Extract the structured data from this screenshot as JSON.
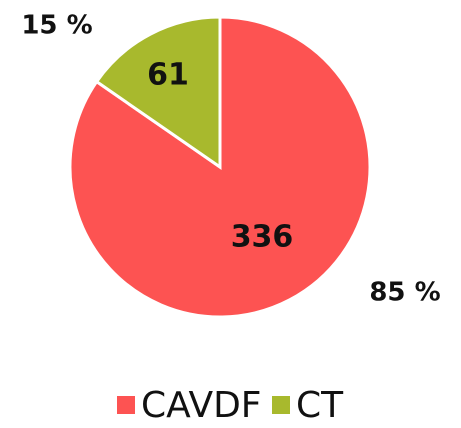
{
  "chart_data": {
    "type": "pie",
    "categories": [
      "CAVDF",
      "CT"
    ],
    "values": [
      336,
      61
    ],
    "percent_labels": [
      "85 %",
      "15 %"
    ],
    "colors": [
      "#fd5352",
      "#a8b92d"
    ],
    "legend": "bottom"
  }
}
